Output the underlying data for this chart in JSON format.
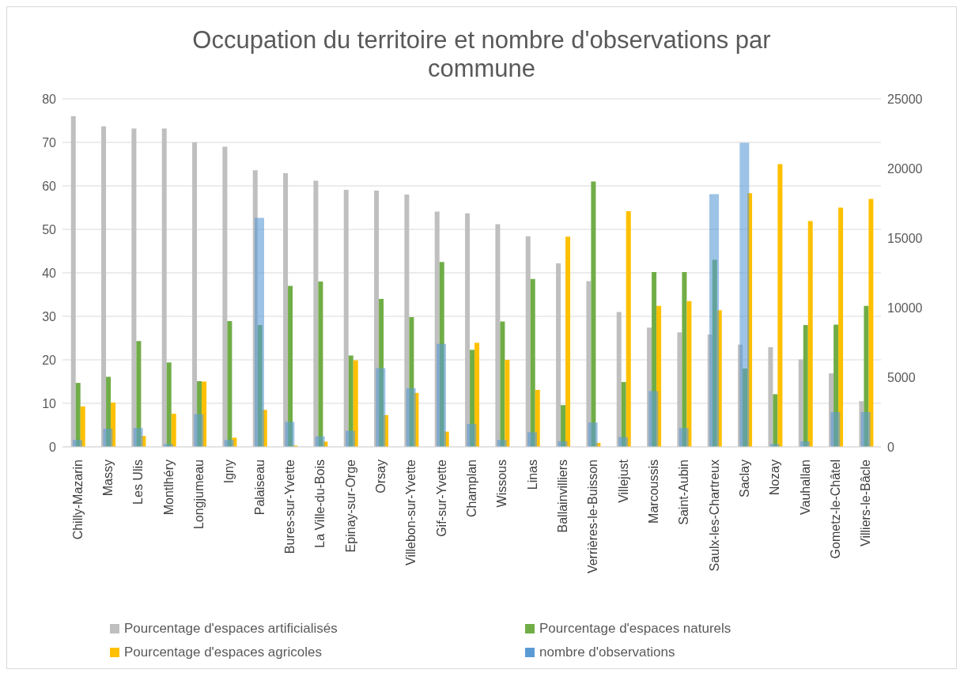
{
  "chart_data": {
    "type": "bar",
    "title": "Occupation du territoire et nombre d'observations par commune",
    "categories": [
      "Chilly-Mazarin",
      "Massy",
      "Les Ulis",
      "Montlhéry",
      "Longjumeau",
      "Igny",
      "Palaiseau",
      "Bures-sur-Yvette",
      "La Ville-du-Bois",
      "Epinay-sur-Orge",
      "Orsay",
      "Villebon-sur-Yvette",
      "Gif-sur-Yvette",
      "Champlan",
      "Wissous",
      "Linas",
      "Ballainvilliers",
      "Verrières-le-Buisson",
      "Villejust",
      "Marcoussis",
      "Saint-Aubin",
      "Saulx-les-Chartreux",
      "Saclay",
      "Nozay",
      "Vauhallan",
      "Gometz-le-Châtel",
      "Villiers-le-Bâcle"
    ],
    "series": [
      {
        "name": "Pourcentage d'espaces artificialisés",
        "color": "#bfbfbf",
        "values": [
          76,
          73.7,
          73.2,
          73.2,
          70,
          69,
          63.6,
          62.9,
          61.2,
          59.1,
          58.9,
          58,
          54.1,
          53.7,
          51.2,
          48.4,
          42.2,
          38.1,
          31,
          27.4,
          26.3,
          25.8,
          23.5,
          22.9,
          20.1,
          16.9,
          10.5
        ]
      },
      {
        "name": "Pourcentage d'espaces naturels",
        "color": "#70ad47",
        "values": [
          14.7,
          16.1,
          24.3,
          19.4,
          15.1,
          28.9,
          28,
          37,
          38,
          21,
          34,
          29.8,
          42.5,
          22.3,
          28.8,
          38.6,
          9.6,
          61,
          14.9,
          40.2,
          40.2,
          43,
          18,
          12.1,
          28,
          28.1,
          32.4
        ]
      },
      {
        "name": "Pourcentage d'espaces agricoles",
        "color": "#ffc000",
        "values": [
          9.3,
          10.2,
          2.5,
          7.6,
          15,
          2.1,
          8.5,
          0.3,
          1.2,
          19.9,
          7.3,
          12.4,
          3.5,
          23.9,
          20,
          13.1,
          48.3,
          0.9,
          54.2,
          32.4,
          33.5,
          31.4,
          58.3,
          65,
          51.9,
          55,
          57
        ]
      },
      {
        "name": "nombre d'observations",
        "color": "#5b9bd5",
        "axis": "y2",
        "values": [
          500,
          1300,
          1350,
          200,
          2350,
          500,
          16450,
          1800,
          750,
          1150,
          5650,
          4200,
          7400,
          1650,
          500,
          1050,
          400,
          1750,
          700,
          4000,
          1350,
          18150,
          21850,
          200,
          400,
          2500,
          2500
        ]
      }
    ],
    "ylim": [
      0,
      80
    ],
    "yticks": [
      0,
      10,
      20,
      30,
      40,
      50,
      60,
      70,
      80
    ],
    "y2lim": [
      0,
      25000
    ],
    "y2ticks": [
      0,
      5000,
      10000,
      15000,
      20000,
      25000
    ],
    "grid": "y",
    "legend": "bottom"
  }
}
